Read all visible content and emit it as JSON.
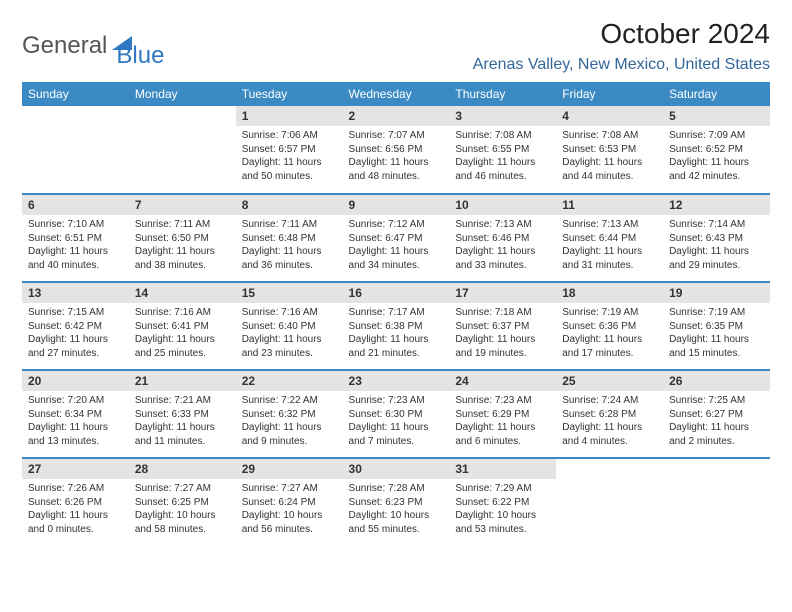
{
  "brand": {
    "part1": "General",
    "part2": "Blue"
  },
  "title": "October 2024",
  "location": "Arenas Valley, New Mexico, United States",
  "colors": {
    "header_bg": "#3b8ac4",
    "header_text": "#ffffff",
    "daynum_bg": "#e4e4e4",
    "row_border": "#3b8ac4",
    "location_color": "#336699",
    "brand_blue": "#2f79c2",
    "body_bg": "#ffffff",
    "text": "#333333"
  },
  "typography": {
    "title_fontsize": 28,
    "location_fontsize": 16,
    "dayheader_fontsize": 12,
    "daynum_fontsize": 12,
    "body_fontsize": 10
  },
  "day_headers": [
    "Sunday",
    "Monday",
    "Tuesday",
    "Wednesday",
    "Thursday",
    "Friday",
    "Saturday"
  ],
  "weeks": [
    [
      null,
      null,
      {
        "n": "1",
        "sunrise": "Sunrise: 7:06 AM",
        "sunset": "Sunset: 6:57 PM",
        "daylight": "Daylight: 11 hours and 50 minutes."
      },
      {
        "n": "2",
        "sunrise": "Sunrise: 7:07 AM",
        "sunset": "Sunset: 6:56 PM",
        "daylight": "Daylight: 11 hours and 48 minutes."
      },
      {
        "n": "3",
        "sunrise": "Sunrise: 7:08 AM",
        "sunset": "Sunset: 6:55 PM",
        "daylight": "Daylight: 11 hours and 46 minutes."
      },
      {
        "n": "4",
        "sunrise": "Sunrise: 7:08 AM",
        "sunset": "Sunset: 6:53 PM",
        "daylight": "Daylight: 11 hours and 44 minutes."
      },
      {
        "n": "5",
        "sunrise": "Sunrise: 7:09 AM",
        "sunset": "Sunset: 6:52 PM",
        "daylight": "Daylight: 11 hours and 42 minutes."
      }
    ],
    [
      {
        "n": "6",
        "sunrise": "Sunrise: 7:10 AM",
        "sunset": "Sunset: 6:51 PM",
        "daylight": "Daylight: 11 hours and 40 minutes."
      },
      {
        "n": "7",
        "sunrise": "Sunrise: 7:11 AM",
        "sunset": "Sunset: 6:50 PM",
        "daylight": "Daylight: 11 hours and 38 minutes."
      },
      {
        "n": "8",
        "sunrise": "Sunrise: 7:11 AM",
        "sunset": "Sunset: 6:48 PM",
        "daylight": "Daylight: 11 hours and 36 minutes."
      },
      {
        "n": "9",
        "sunrise": "Sunrise: 7:12 AM",
        "sunset": "Sunset: 6:47 PM",
        "daylight": "Daylight: 11 hours and 34 minutes."
      },
      {
        "n": "10",
        "sunrise": "Sunrise: 7:13 AM",
        "sunset": "Sunset: 6:46 PM",
        "daylight": "Daylight: 11 hours and 33 minutes."
      },
      {
        "n": "11",
        "sunrise": "Sunrise: 7:13 AM",
        "sunset": "Sunset: 6:44 PM",
        "daylight": "Daylight: 11 hours and 31 minutes."
      },
      {
        "n": "12",
        "sunrise": "Sunrise: 7:14 AM",
        "sunset": "Sunset: 6:43 PM",
        "daylight": "Daylight: 11 hours and 29 minutes."
      }
    ],
    [
      {
        "n": "13",
        "sunrise": "Sunrise: 7:15 AM",
        "sunset": "Sunset: 6:42 PM",
        "daylight": "Daylight: 11 hours and 27 minutes."
      },
      {
        "n": "14",
        "sunrise": "Sunrise: 7:16 AM",
        "sunset": "Sunset: 6:41 PM",
        "daylight": "Daylight: 11 hours and 25 minutes."
      },
      {
        "n": "15",
        "sunrise": "Sunrise: 7:16 AM",
        "sunset": "Sunset: 6:40 PM",
        "daylight": "Daylight: 11 hours and 23 minutes."
      },
      {
        "n": "16",
        "sunrise": "Sunrise: 7:17 AM",
        "sunset": "Sunset: 6:38 PM",
        "daylight": "Daylight: 11 hours and 21 minutes."
      },
      {
        "n": "17",
        "sunrise": "Sunrise: 7:18 AM",
        "sunset": "Sunset: 6:37 PM",
        "daylight": "Daylight: 11 hours and 19 minutes."
      },
      {
        "n": "18",
        "sunrise": "Sunrise: 7:19 AM",
        "sunset": "Sunset: 6:36 PM",
        "daylight": "Daylight: 11 hours and 17 minutes."
      },
      {
        "n": "19",
        "sunrise": "Sunrise: 7:19 AM",
        "sunset": "Sunset: 6:35 PM",
        "daylight": "Daylight: 11 hours and 15 minutes."
      }
    ],
    [
      {
        "n": "20",
        "sunrise": "Sunrise: 7:20 AM",
        "sunset": "Sunset: 6:34 PM",
        "daylight": "Daylight: 11 hours and 13 minutes."
      },
      {
        "n": "21",
        "sunrise": "Sunrise: 7:21 AM",
        "sunset": "Sunset: 6:33 PM",
        "daylight": "Daylight: 11 hours and 11 minutes."
      },
      {
        "n": "22",
        "sunrise": "Sunrise: 7:22 AM",
        "sunset": "Sunset: 6:32 PM",
        "daylight": "Daylight: 11 hours and 9 minutes."
      },
      {
        "n": "23",
        "sunrise": "Sunrise: 7:23 AM",
        "sunset": "Sunset: 6:30 PM",
        "daylight": "Daylight: 11 hours and 7 minutes."
      },
      {
        "n": "24",
        "sunrise": "Sunrise: 7:23 AM",
        "sunset": "Sunset: 6:29 PM",
        "daylight": "Daylight: 11 hours and 6 minutes."
      },
      {
        "n": "25",
        "sunrise": "Sunrise: 7:24 AM",
        "sunset": "Sunset: 6:28 PM",
        "daylight": "Daylight: 11 hours and 4 minutes."
      },
      {
        "n": "26",
        "sunrise": "Sunrise: 7:25 AM",
        "sunset": "Sunset: 6:27 PM",
        "daylight": "Daylight: 11 hours and 2 minutes."
      }
    ],
    [
      {
        "n": "27",
        "sunrise": "Sunrise: 7:26 AM",
        "sunset": "Sunset: 6:26 PM",
        "daylight": "Daylight: 11 hours and 0 minutes."
      },
      {
        "n": "28",
        "sunrise": "Sunrise: 7:27 AM",
        "sunset": "Sunset: 6:25 PM",
        "daylight": "Daylight: 10 hours and 58 minutes."
      },
      {
        "n": "29",
        "sunrise": "Sunrise: 7:27 AM",
        "sunset": "Sunset: 6:24 PM",
        "daylight": "Daylight: 10 hours and 56 minutes."
      },
      {
        "n": "30",
        "sunrise": "Sunrise: 7:28 AM",
        "sunset": "Sunset: 6:23 PM",
        "daylight": "Daylight: 10 hours and 55 minutes."
      },
      {
        "n": "31",
        "sunrise": "Sunrise: 7:29 AM",
        "sunset": "Sunset: 6:22 PM",
        "daylight": "Daylight: 10 hours and 53 minutes."
      },
      null,
      null
    ]
  ]
}
